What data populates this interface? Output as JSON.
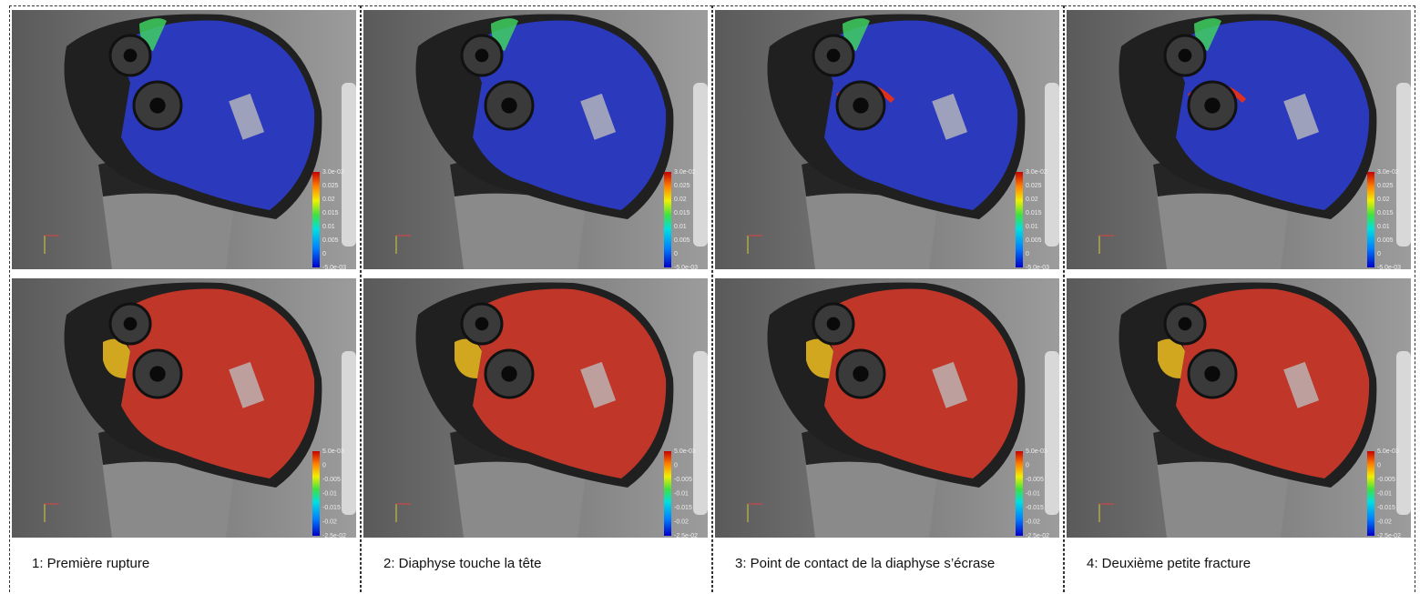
{
  "panels": [
    {
      "caption": "1: Première rupture"
    },
    {
      "caption": "2: Diaphyse touche la tête"
    },
    {
      "caption": "3: Point de contact de la diaphyse s’écrase"
    },
    {
      "caption": "4: Deuxième petite fracture"
    }
  ],
  "colorbars": {
    "top": [
      "3.0e-02",
      "0.025",
      "0.02",
      "0.015",
      "0.01",
      "0.005",
      "0",
      "-5.0e-03"
    ],
    "bottom": [
      "5.0e-03",
      "0",
      "-0.005",
      "-0.01",
      "-0.015",
      "-0.02",
      "-2.5e-02"
    ]
  }
}
